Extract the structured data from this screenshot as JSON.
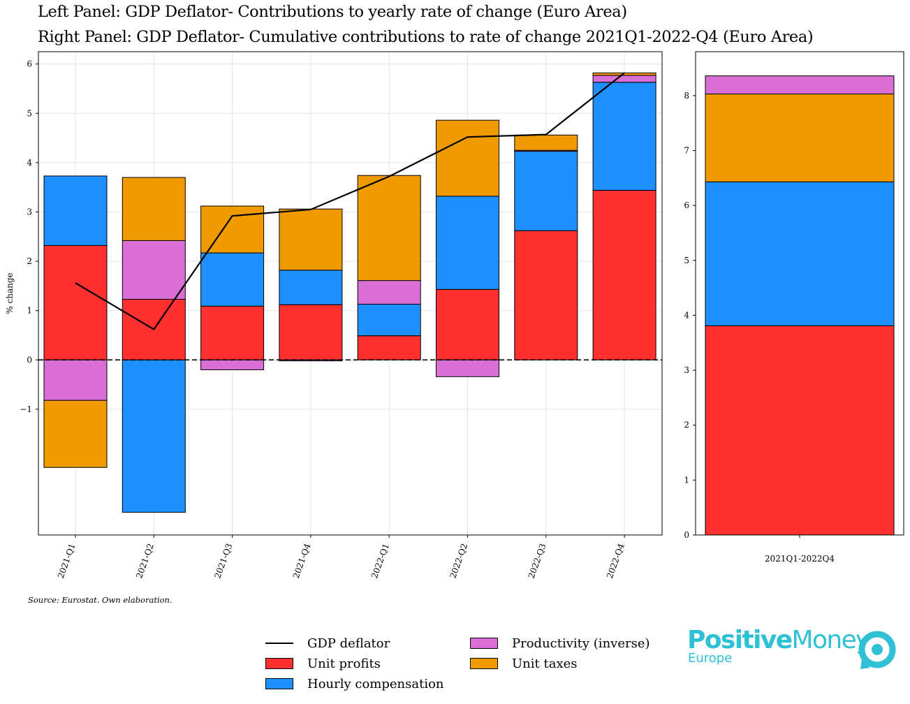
{
  "titles": {
    "left": "Left Panel: GDP Deflator- Contributions to yearly rate of change (Euro Area)",
    "right": "Right Panel: GDP Deflator- Cumulative contributions to rate of change 2021Q1-2022-Q4 (Euro Area)"
  },
  "source": "Source: Eurostat. Own elaboration.",
  "legend": {
    "gdp_deflator": "GDP deflator",
    "unit_profits": "Unit profits",
    "hourly_compensation": "Hourly compensation",
    "productivity": "Productivity (inverse)",
    "unit_taxes": "Unit taxes"
  },
  "logo": {
    "main_bold": "Positive",
    "main_light": "Money",
    "sub": "Europe"
  },
  "colors": {
    "unit_profits": "#ff3030",
    "hourly_compensation": "#1e90ff",
    "productivity": "#da70d6",
    "unit_taxes": "#ee9a00",
    "line": "#000000",
    "brand": "#2ec0d4"
  },
  "chart_data": [
    {
      "type": "bar",
      "stacked": true,
      "title": "Left Panel: GDP Deflator- Contributions to yearly rate of change (Euro Area)",
      "categories": [
        "2021-Q1",
        "2021-Q2",
        "2021-Q3",
        "2021-Q4",
        "2022-Q1",
        "2022-Q2",
        "2022-Q3",
        "2022-Q4"
      ],
      "ylabel": "% change",
      "xlabel": "",
      "ylim": [
        -3.55,
        6.25
      ],
      "yticks": [
        -1,
        0,
        1,
        2,
        3,
        4,
        5,
        6
      ],
      "grid": true,
      "series": [
        {
          "name": "Unit profits",
          "key": "unit_profits",
          "values": [
            2.32,
            1.23,
            1.09,
            1.12,
            0.49,
            1.43,
            2.62,
            3.44
          ]
        },
        {
          "name": "Hourly compensation",
          "key": "hourly_compensation",
          "values": [
            1.41,
            -3.09,
            1.08,
            0.7,
            0.64,
            1.89,
            1.61,
            2.19
          ]
        },
        {
          "name": "Productivity (inverse)",
          "key": "productivity",
          "values": [
            -0.82,
            1.19,
            -0.2,
            -0.02,
            0.48,
            -0.34,
            0.02,
            0.14
          ]
        },
        {
          "name": "Unit taxes",
          "key": "unit_taxes",
          "values": [
            -1.36,
            1.28,
            0.95,
            1.24,
            2.13,
            1.54,
            0.31,
            0.05
          ]
        }
      ],
      "line": {
        "name": "GDP deflator",
        "values": [
          1.56,
          0.62,
          2.92,
          3.05,
          3.72,
          4.52,
          4.57,
          5.82
        ]
      }
    },
    {
      "type": "bar",
      "stacked": true,
      "title": "Right Panel: GDP Deflator- Cumulative contributions to rate of change 2021Q1-2022-Q4 (Euro Area)",
      "categories": [
        "2021Q1-2022Q4"
      ],
      "ylim": [
        0,
        8.8
      ],
      "yticks": [
        0,
        1,
        2,
        3,
        4,
        5,
        6,
        7,
        8
      ],
      "series": [
        {
          "name": "Unit profits",
          "key": "unit_profits",
          "values": [
            3.81
          ]
        },
        {
          "name": "Hourly compensation",
          "key": "hourly_compensation",
          "values": [
            2.62
          ]
        },
        {
          "name": "Unit taxes",
          "key": "unit_taxes",
          "values": [
            1.6
          ]
        },
        {
          "name": "Productivity (inverse)",
          "key": "productivity",
          "values": [
            0.33
          ]
        }
      ]
    }
  ]
}
